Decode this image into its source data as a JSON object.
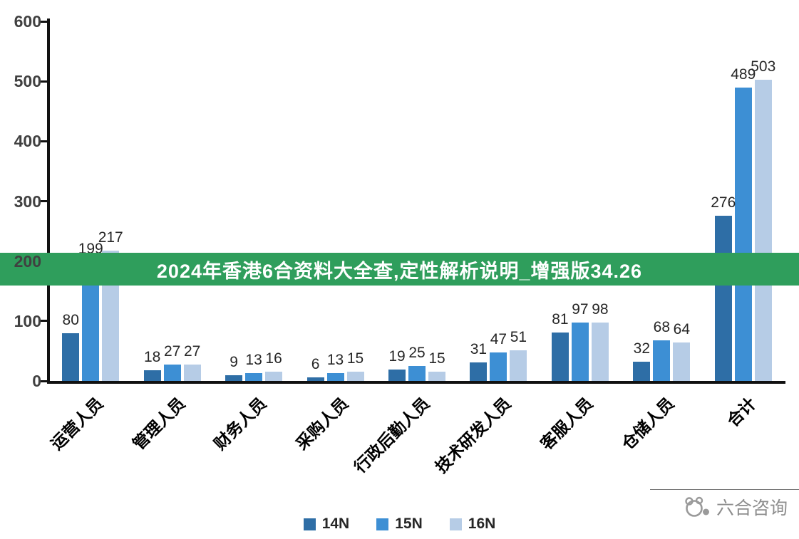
{
  "banner": {
    "text": "2024年香港6合资料大全查,定性解析说明_增强版34.26",
    "bg_color": "#2f9e5c",
    "text_color": "#ffffff"
  },
  "footer": {
    "brand": "六合咨询"
  },
  "chart_data": {
    "type": "bar",
    "title": "",
    "xlabel": "",
    "ylabel": "",
    "categories": [
      "运营人员",
      "管理人员",
      "财务人员",
      "采购人员",
      "行政后勤人员",
      "技术研发人员",
      "客服人员",
      "仓储人员",
      "合计"
    ],
    "series": [
      {
        "name": "14N",
        "color": "#2e6ea6",
        "values": [
          80,
          18,
          9,
          6,
          19,
          31,
          81,
          32,
          276
        ]
      },
      {
        "name": "15N",
        "color": "#3d8fd4",
        "values": [
          199,
          27,
          13,
          13,
          25,
          47,
          97,
          68,
          489
        ]
      },
      {
        "name": "16N",
        "color": "#b6cce6",
        "values": [
          217,
          27,
          16,
          15,
          15,
          51,
          98,
          64,
          503
        ]
      }
    ],
    "ylim": [
      0,
      600
    ],
    "yticks": [
      0,
      100,
      200,
      300,
      400,
      500,
      600
    ],
    "grid": false,
    "legend_position": "bottom"
  }
}
